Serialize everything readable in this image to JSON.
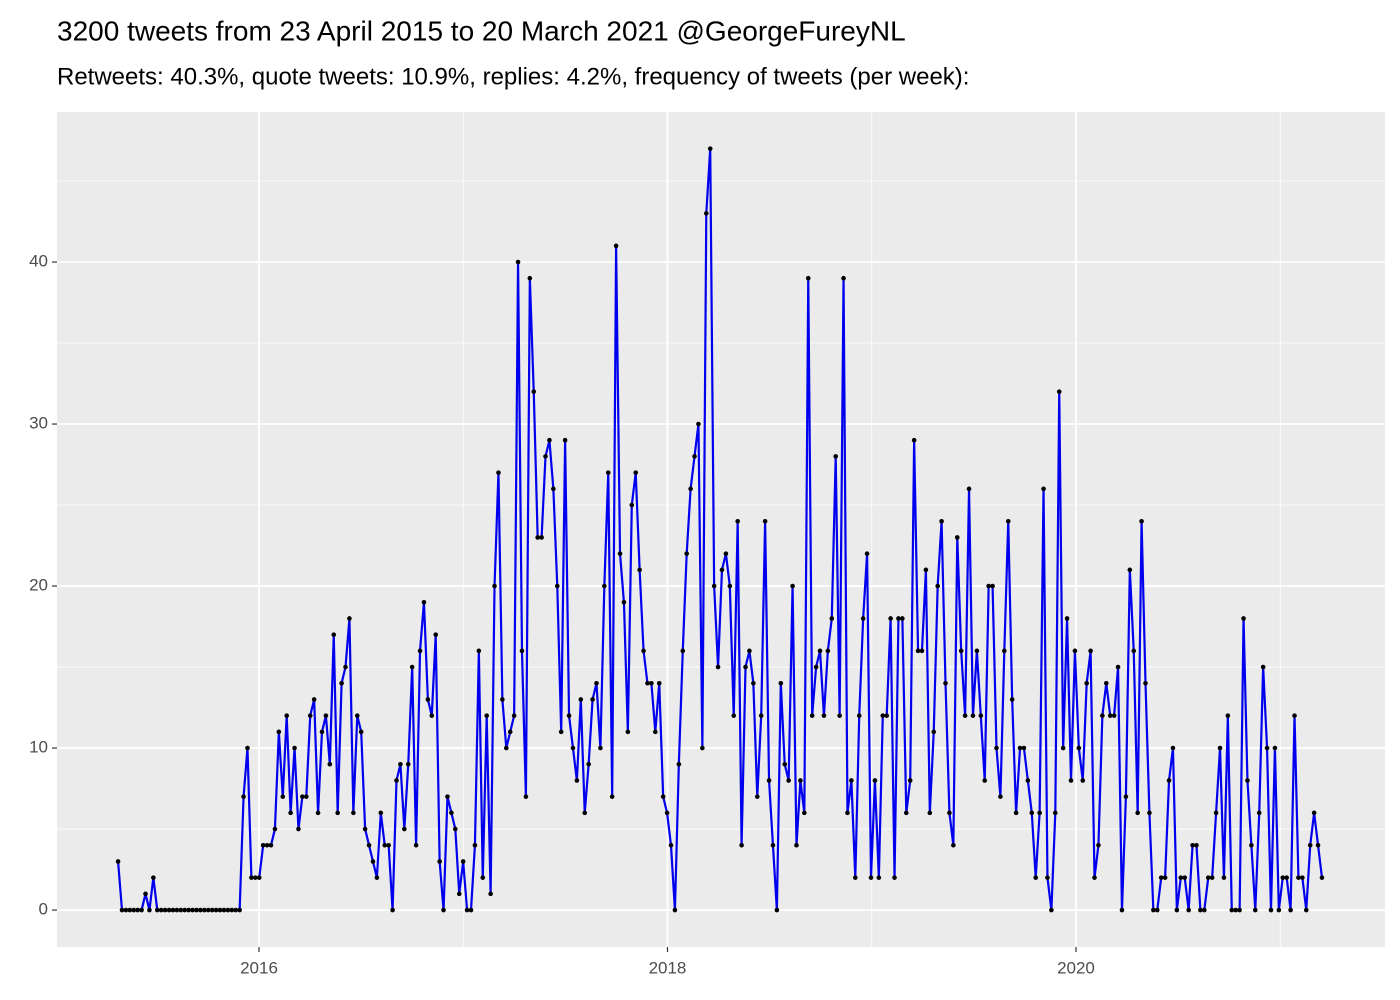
{
  "chart_data": {
    "type": "line",
    "title": "3200 tweets from 23 April 2015 to 20 March 2021 @GeorgeFureyNL",
    "subtitle": "Retweets: 40.3%, quote tweets: 10.9%, replies: 4.2%, frequency of tweets (per week):",
    "color": "#0000ee",
    "marker_color": "#000000",
    "grid": true,
    "xlim": [
      2015.011,
      2021.513
    ],
    "xticks": [
      2016,
      2018,
      2020
    ],
    "ylim": [
      -2.28,
      49.26
    ],
    "yticks": [
      0,
      10,
      20,
      30,
      40
    ],
    "x": [
      2015.31,
      2015.3292,
      2015.3484,
      2015.3676,
      2015.3868,
      2015.406,
      2015.4252,
      2015.4444,
      2015.4636,
      2015.4828,
      2015.502,
      2015.5212,
      2015.5404,
      2015.5596,
      2015.5788,
      2015.598,
      2015.6172,
      2015.6364,
      2015.6556,
      2015.6748,
      2015.694,
      2015.7132,
      2015.7324,
      2015.7516,
      2015.7708,
      2015.79,
      2015.8092,
      2015.8284,
      2015.8476,
      2015.8668,
      2015.886,
      2015.9052,
      2015.9244,
      2015.9436,
      2015.9628,
      2015.982,
      2016.0012,
      2016.0204,
      2016.0396,
      2016.0588,
      2016.078,
      2016.0972,
      2016.1164,
      2016.1356,
      2016.1548,
      2016.174,
      2016.1932,
      2016.2124,
      2016.2316,
      2016.2508,
      2016.27,
      2016.2892,
      2016.3084,
      2016.3276,
      2016.3468,
      2016.366,
      2016.3852,
      2016.4044,
      2016.4236,
      2016.4428,
      2016.462,
      2016.4812,
      2016.5004,
      2016.5196,
      2016.5388,
      2016.558,
      2016.5772,
      2016.5964,
      2016.6156,
      2016.6348,
      2016.654,
      2016.6732,
      2016.6924,
      2016.7116,
      2016.7308,
      2016.75,
      2016.7692,
      2016.7884,
      2016.8076,
      2016.8268,
      2016.846,
      2016.8652,
      2016.8844,
      2016.9036,
      2016.9228,
      2016.942,
      2016.9612,
      2016.9804,
      2016.9996,
      2017.0188,
      2017.038,
      2017.0572,
      2017.0764,
      2017.0956,
      2017.1148,
      2017.134,
      2017.1532,
      2017.1724,
      2017.1916,
      2017.2108,
      2017.23,
      2017.2492,
      2017.2684,
      2017.2876,
      2017.3068,
      2017.326,
      2017.3452,
      2017.3644,
      2017.3836,
      2017.4028,
      2017.422,
      2017.4412,
      2017.4604,
      2017.4796,
      2017.4988,
      2017.518,
      2017.5372,
      2017.5564,
      2017.5756,
      2017.5948,
      2017.614,
      2017.6332,
      2017.6524,
      2017.6716,
      2017.6908,
      2017.71,
      2017.7292,
      2017.7484,
      2017.7676,
      2017.7868,
      2017.806,
      2017.8252,
      2017.8444,
      2017.8636,
      2017.8828,
      2017.902,
      2017.9212,
      2017.9404,
      2017.9596,
      2017.9788,
      2017.998,
      2018.0172,
      2018.0364,
      2018.0556,
      2018.0748,
      2018.094,
      2018.1132,
      2018.1324,
      2018.1516,
      2018.1708,
      2018.19,
      2018.2092,
      2018.2284,
      2018.2476,
      2018.2668,
      2018.286,
      2018.3052,
      2018.3244,
      2018.3436,
      2018.3628,
      2018.382,
      2018.4012,
      2018.4204,
      2018.4396,
      2018.4588,
      2018.478,
      2018.4972,
      2018.5164,
      2018.5356,
      2018.5548,
      2018.574,
      2018.5932,
      2018.6124,
      2018.6316,
      2018.6508,
      2018.67,
      2018.6892,
      2018.7084,
      2018.7276,
      2018.7468,
      2018.766,
      2018.7852,
      2018.8044,
      2018.8236,
      2018.8428,
      2018.862,
      2018.8812,
      2018.9004,
      2018.9196,
      2018.9388,
      2018.958,
      2018.9772,
      2018.9964,
      2019.0156,
      2019.0348,
      2019.054,
      2019.0732,
      2019.0924,
      2019.1116,
      2019.1308,
      2019.15,
      2019.1692,
      2019.1884,
      2019.2076,
      2019.2268,
      2019.246,
      2019.2652,
      2019.2844,
      2019.3036,
      2019.3228,
      2019.342,
      2019.3612,
      2019.3804,
      2019.3996,
      2019.4188,
      2019.438,
      2019.4572,
      2019.4764,
      2019.4956,
      2019.5148,
      2019.534,
      2019.5532,
      2019.5724,
      2019.5916,
      2019.6108,
      2019.63,
      2019.6492,
      2019.6684,
      2019.6876,
      2019.7068,
      2019.726,
      2019.7452,
      2019.7644,
      2019.7836,
      2019.8028,
      2019.822,
      2019.8412,
      2019.8604,
      2019.8796,
      2019.8988,
      2019.918,
      2019.9372,
      2019.9564,
      2019.9756,
      2019.9948,
      2020.014,
      2020.0332,
      2020.0524,
      2020.0716,
      2020.0908,
      2020.11,
      2020.1292,
      2020.1484,
      2020.1676,
      2020.1868,
      2020.206,
      2020.2252,
      2020.2444,
      2020.2636,
      2020.2828,
      2020.302,
      2020.3212,
      2020.3404,
      2020.3596,
      2020.3788,
      2020.398,
      2020.4172,
      2020.4364,
      2020.4556,
      2020.4748,
      2020.494,
      2020.5132,
      2020.5324,
      2020.5516,
      2020.5708,
      2020.59,
      2020.6092,
      2020.6284,
      2020.6476,
      2020.6668,
      2020.686,
      2020.7052,
      2020.7244,
      2020.7436,
      2020.7628,
      2020.782,
      2020.8012,
      2020.8204,
      2020.8396,
      2020.8588,
      2020.878,
      2020.8972,
      2020.9164,
      2020.9356,
      2020.9548,
      2020.974,
      2020.9932,
      2021.0124,
      2021.0316,
      2021.0508,
      2021.07,
      2021.0892,
      2021.1084,
      2021.1276,
      2021.1468,
      2021.166,
      2021.1852,
      2021.2044
    ],
    "values": [
      3,
      0,
      0,
      0,
      0,
      0,
      0,
      1,
      0,
      2,
      0,
      0,
      0,
      0,
      0,
      0,
      0,
      0,
      0,
      0,
      0,
      0,
      0,
      0,
      0,
      0,
      0,
      0,
      0,
      0,
      0,
      0,
      7,
      10,
      2,
      2,
      2,
      4,
      4,
      4,
      5,
      11,
      7,
      12,
      6,
      10,
      5,
      7,
      7,
      12,
      13,
      6,
      11,
      12,
      9,
      17,
      6,
      14,
      15,
      18,
      6,
      12,
      11,
      5,
      4,
      3,
      2,
      6,
      4,
      4,
      0,
      8,
      9,
      5,
      9,
      15,
      4,
      16,
      19,
      13,
      12,
      17,
      3,
      0,
      7,
      6,
      5,
      1,
      3,
      0,
      0,
      4,
      16,
      2,
      12,
      1,
      20,
      27,
      13,
      10,
      11,
      12,
      40,
      16,
      7,
      39,
      32,
      23,
      23,
      28,
      29,
      26,
      20,
      11,
      29,
      12,
      10,
      8,
      13,
      6,
      9,
      13,
      14,
      10,
      20,
      27,
      7,
      41,
      22,
      19,
      11,
      25,
      27,
      21,
      16,
      14,
      14,
      11,
      14,
      7,
      6,
      4,
      0,
      9,
      16,
      22,
      26,
      28,
      30,
      10,
      43,
      47,
      20,
      15,
      21,
      22,
      20,
      12,
      24,
      4,
      15,
      16,
      14,
      7,
      12,
      24,
      8,
      4,
      0,
      14,
      9,
      8,
      20,
      4,
      8,
      6,
      39,
      12,
      15,
      16,
      12,
      16,
      18,
      28,
      12,
      39,
      6,
      8,
      2,
      12,
      18,
      22,
      2,
      8,
      2,
      12,
      12,
      18,
      2,
      18,
      18,
      6,
      8,
      29,
      16,
      16,
      21,
      6,
      11,
      20,
      24,
      14,
      6,
      4,
      23,
      16,
      12,
      26,
      12,
      16,
      12,
      8,
      20,
      20,
      10,
      7,
      16,
      24,
      13,
      6,
      10,
      10,
      8,
      6,
      2,
      6,
      26,
      2,
      0,
      6,
      32,
      10,
      18,
      8,
      16,
      10,
      8,
      14,
      16,
      2,
      4,
      12,
      14,
      12,
      12,
      15,
      0,
      7,
      21,
      16,
      6,
      24,
      14,
      6,
      0,
      0,
      2,
      2,
      8,
      10,
      0,
      2,
      2,
      0,
      4,
      4,
      0,
      0,
      2,
      2,
      6,
      10,
      2,
      12,
      0,
      0,
      0,
      18,
      8,
      4,
      0,
      6,
      15,
      10,
      0,
      10,
      0,
      2,
      2,
      0,
      12,
      2,
      2,
      0,
      4,
      6,
      4,
      2
    ]
  }
}
